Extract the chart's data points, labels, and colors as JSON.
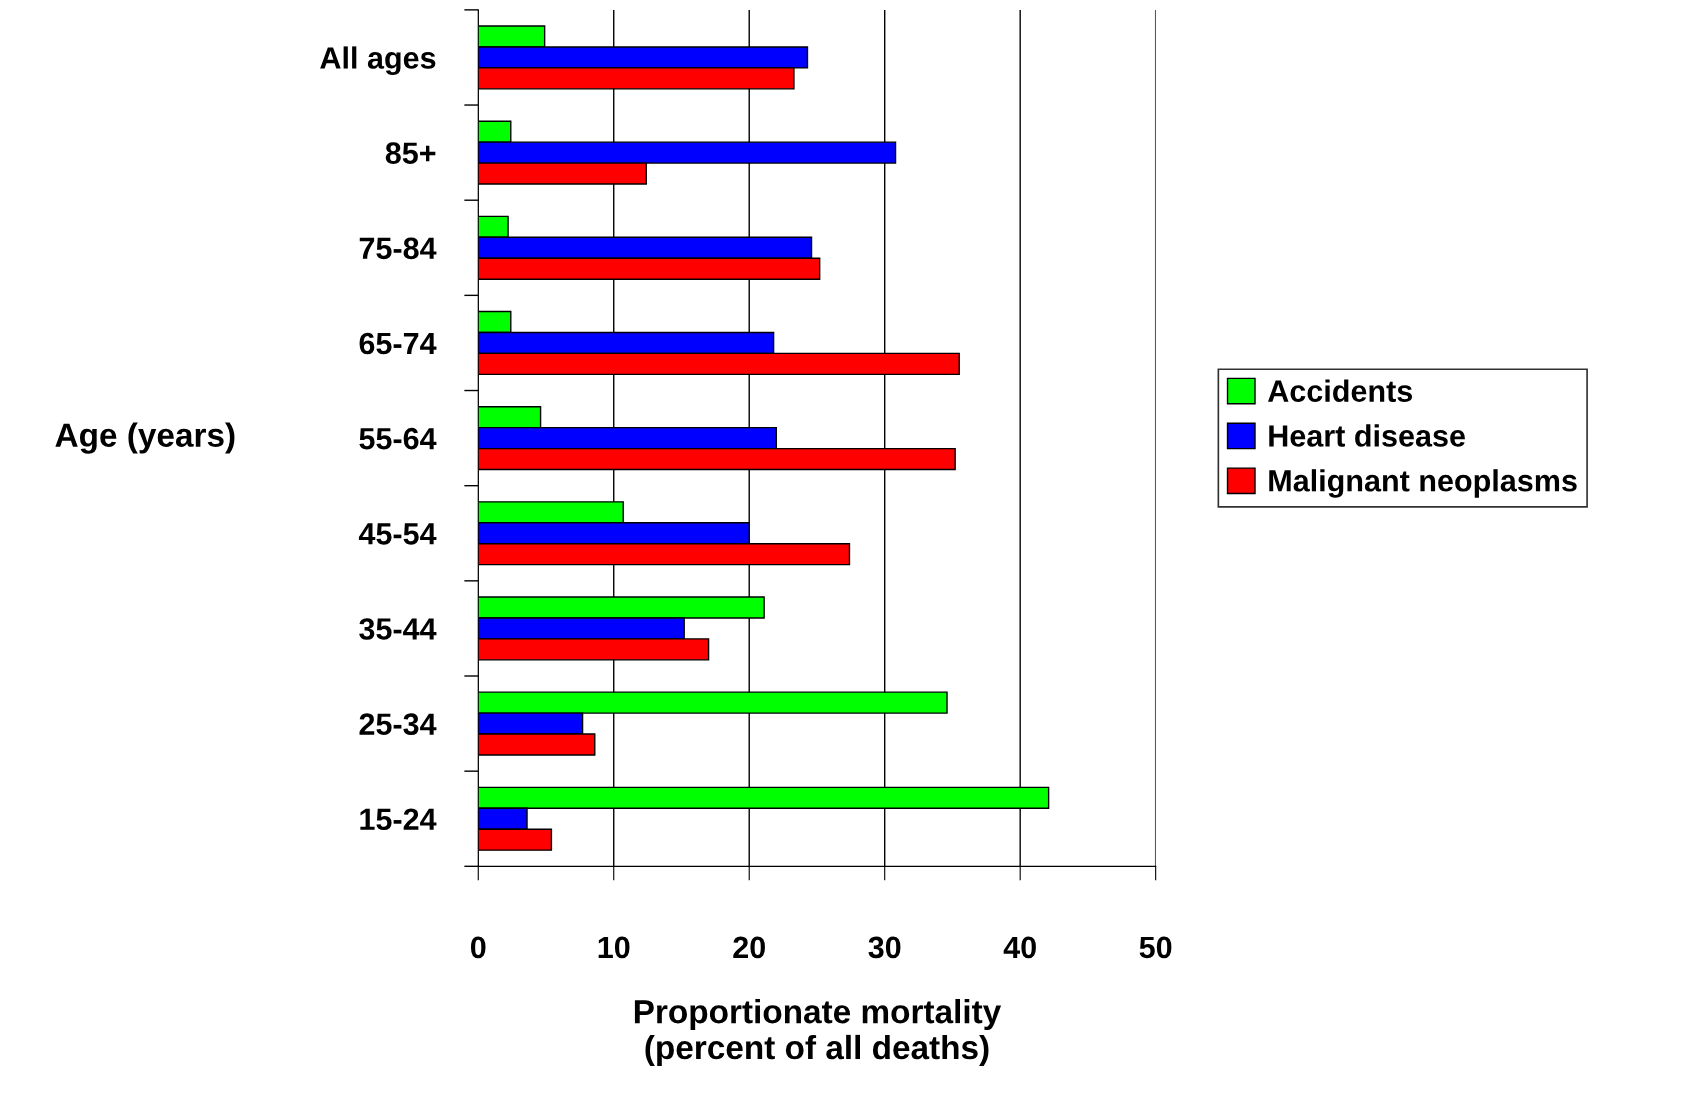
{
  "chart_data": {
    "type": "bar",
    "orientation": "horizontal",
    "xlabel": "Proportionate mortality\n(percent of all deaths)",
    "ylabel": "Age (years)",
    "categories": [
      "All ages",
      "85+",
      "75-84",
      "65-74",
      "55-64",
      "45-54",
      "35-44",
      "25-34",
      "15-24"
    ],
    "series": [
      {
        "name": "Accidents",
        "color": "#00ff00",
        "values": [
          4.9,
          2.4,
          2.2,
          2.4,
          4.6,
          10.7,
          21.1,
          34.6,
          42.1
        ]
      },
      {
        "name": "Heart disease",
        "color": "#0000ff",
        "values": [
          24.3,
          30.8,
          24.6,
          21.8,
          22.0,
          20.0,
          15.2,
          7.7,
          3.6
        ]
      },
      {
        "name": "Malignant neoplasms",
        "color": "#ff0000",
        "values": [
          23.3,
          12.4,
          25.2,
          35.5,
          35.2,
          27.4,
          17.0,
          8.6,
          5.4
        ]
      }
    ],
    "xlim": [
      0,
      50
    ],
    "xticks": [
      0,
      10,
      20,
      30,
      40,
      50
    ],
    "grid": "x",
    "legend": "right"
  }
}
